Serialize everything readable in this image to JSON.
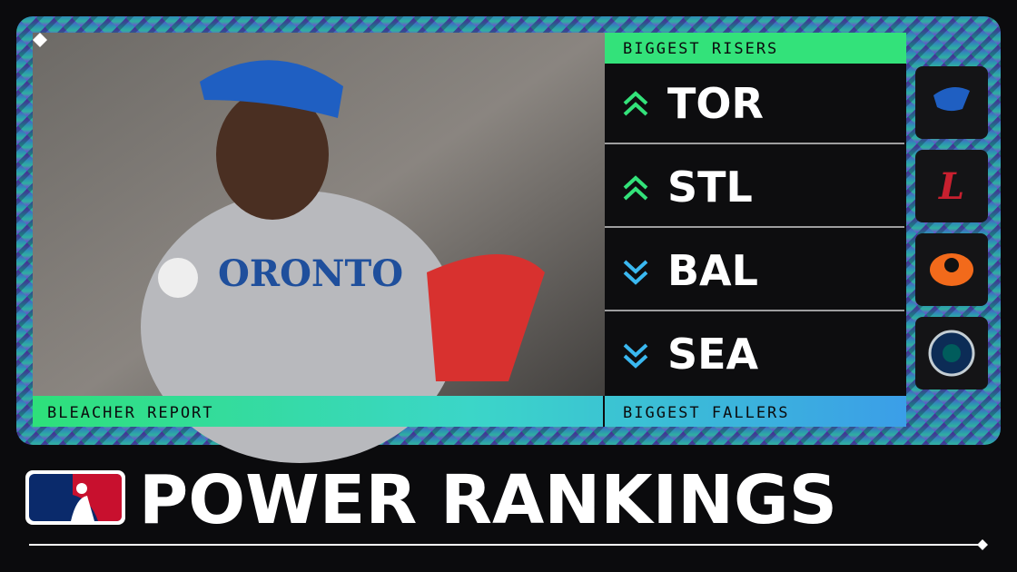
{
  "panel": {
    "risers_label": "BIGGEST RISERS",
    "fallers_label": "BIGGEST FALLERS",
    "brand": "BLEACHER REPORT"
  },
  "teams": [
    {
      "abbr": "TOR"
    },
    {
      "abbr": "STL"
    },
    {
      "abbr": "BAL"
    },
    {
      "abbr": "SEA"
    }
  ],
  "title": "POWER RANKINGS"
}
